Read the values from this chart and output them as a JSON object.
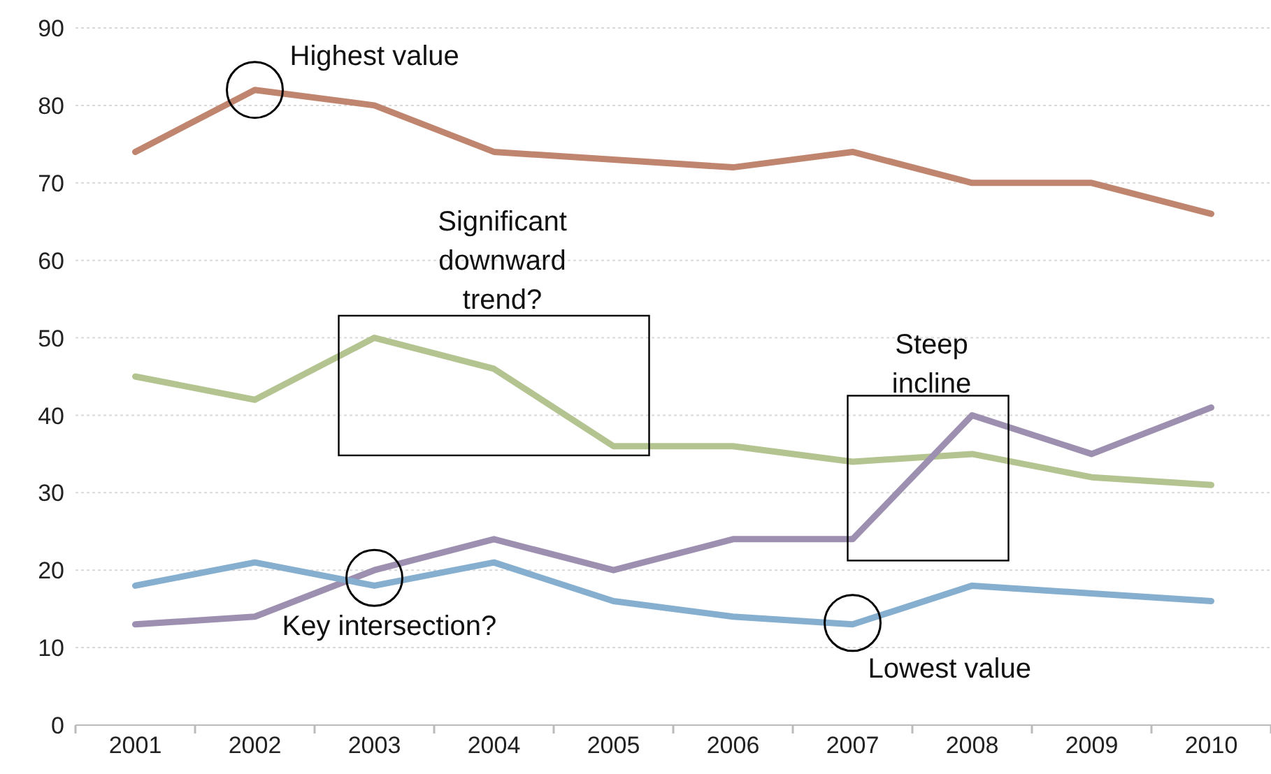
{
  "chart_data": {
    "type": "line",
    "categories": [
      "2001",
      "2002",
      "2003",
      "2004",
      "2005",
      "2006",
      "2007",
      "2008",
      "2009",
      "2010"
    ],
    "series": [
      {
        "color": "#c0856f",
        "values": [
          74,
          82,
          80,
          74,
          73,
          72,
          74,
          70,
          70,
          66
        ]
      },
      {
        "color": "#b4c491",
        "values": [
          45,
          42,
          50,
          46,
          36,
          36,
          34,
          35,
          32,
          31
        ]
      },
      {
        "color": "#9d8faf",
        "values": [
          13,
          14,
          20,
          24,
          20,
          24,
          24,
          40,
          35,
          41
        ]
      },
      {
        "color": "#85aecf",
        "values": [
          18,
          21,
          18,
          21,
          16,
          14,
          13,
          18,
          17,
          16
        ]
      }
    ],
    "ylim": [
      0,
      90
    ],
    "yticks": [
      0,
      10,
      20,
      30,
      40,
      50,
      60,
      70,
      80,
      90
    ],
    "grid": "y",
    "legend": false,
    "marker": "none",
    "line_style": "solid",
    "annotations": [
      {
        "text": "Highest value",
        "x": "2002",
        "y": 82
      },
      {
        "text": "Significant downward trend?",
        "x": "2004",
        "y": 46
      },
      {
        "text": "Steep incline",
        "x": "2008",
        "y": 40
      },
      {
        "text": "Key intersection?",
        "x": "2003",
        "y": 19
      },
      {
        "text": "Lowest value",
        "x": "2007",
        "y": 13
      }
    ]
  }
}
